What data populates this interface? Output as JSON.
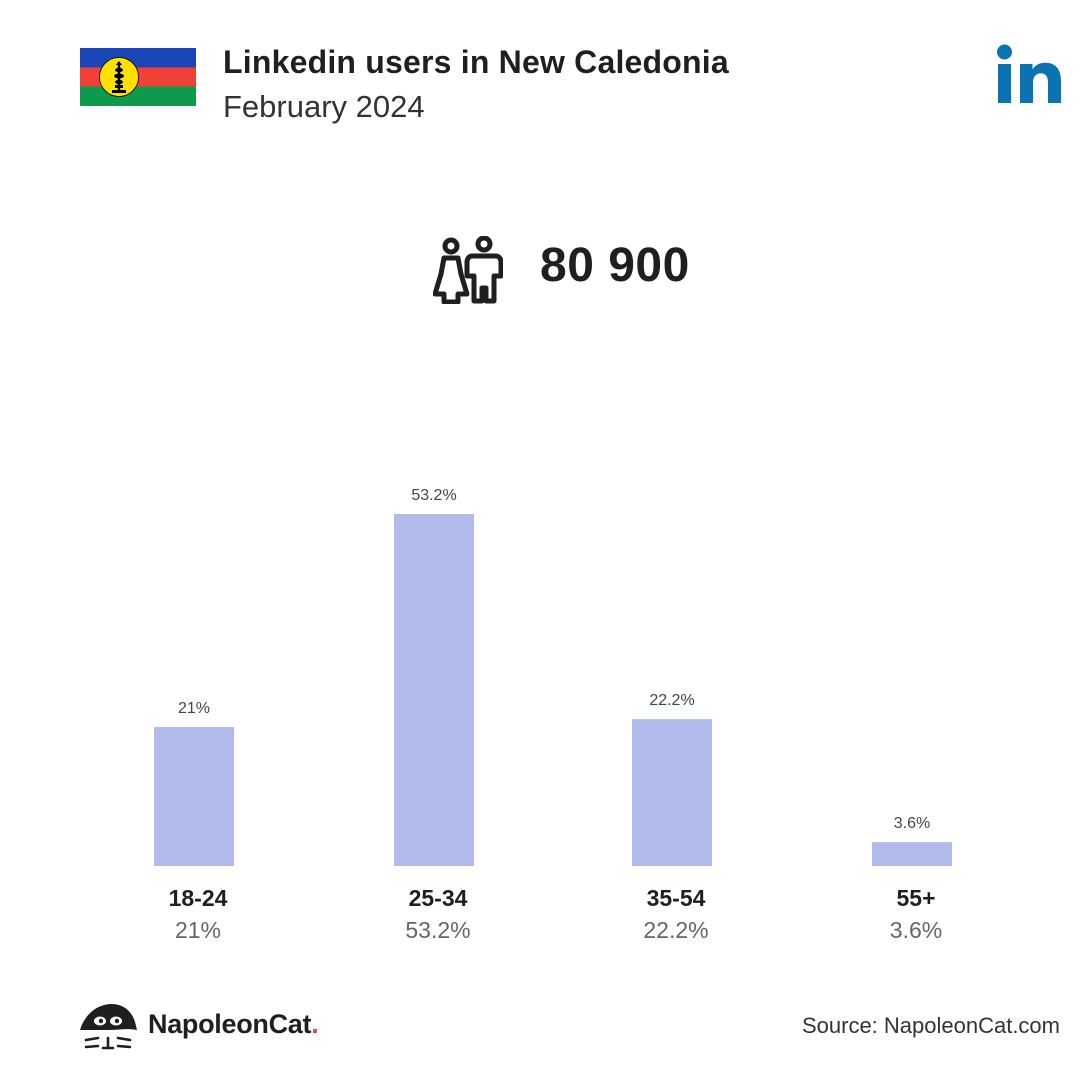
{
  "header": {
    "title": "Linkedin users in New Caledonia",
    "subtitle": "February 2024",
    "flag_icon": "new-caledonia-flag-icon",
    "logo_icon": "linkedin-logo-icon"
  },
  "total": {
    "icon": "users-icon",
    "value": "80 900"
  },
  "chart_data": {
    "type": "bar",
    "title": "",
    "xlabel": "",
    "ylabel": "",
    "categories": [
      "18-24",
      "25-34",
      "35-54",
      "55+"
    ],
    "values": [
      21,
      53.2,
      22.2,
      3.6
    ],
    "value_labels": [
      "21%",
      "53.2%",
      "22.2%",
      "3.6%"
    ],
    "unit": "%",
    "ylim": [
      0,
      53.2
    ],
    "grid": false,
    "bar_color": "#b0baeb"
  },
  "footer": {
    "brand_name": "NapoleonCat",
    "brand_dot": ".",
    "brand_icon": "napoleoncat-logo-icon",
    "source": "Source: NapoleonCat.com"
  },
  "colors": {
    "linkedin_blue": "#0a73b1",
    "accent_red": "#e8473e",
    "flag_blue": "#1a46b8",
    "flag_red": "#ef4135",
    "flag_green": "#0d9a4d",
    "flag_yellow": "#ffe000"
  }
}
